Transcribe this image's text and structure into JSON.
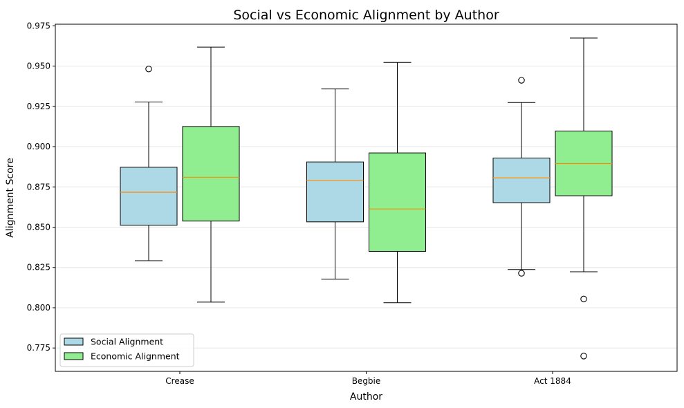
{
  "chart_data": {
    "type": "box",
    "title": "Social vs Economic Alignment by Author",
    "xlabel": "Author",
    "ylabel": "Alignment Score",
    "categories": [
      "Crease",
      "Begbie",
      "Act 1884"
    ],
    "ylim": [
      0.7605,
      0.976
    ],
    "yticks": [
      0.775,
      0.8,
      0.825,
      0.85,
      0.875,
      0.9,
      0.925,
      0.95,
      0.975
    ],
    "ytick_labels": [
      "0.775",
      "0.800",
      "0.825",
      "0.850",
      "0.875",
      "0.900",
      "0.925",
      "0.950",
      "0.975"
    ],
    "grid": "y",
    "legend_position": "lower-left",
    "median_color": "#ff8c00",
    "series": [
      {
        "name": "Social Alignment",
        "color": "#add8e6",
        "boxes": [
          {
            "category": "Crease",
            "whisker_low": 0.8292,
            "q1": 0.8512,
            "median": 0.8717,
            "q3": 0.8872,
            "whisker_high": 0.9277,
            "outliers": [
              0.9482
            ]
          },
          {
            "category": "Begbie",
            "whisker_low": 0.8177,
            "q1": 0.8533,
            "median": 0.879,
            "q3": 0.8905,
            "whisker_high": 0.9358,
            "outliers": []
          },
          {
            "category": "Act 1884",
            "whisker_low": 0.8237,
            "q1": 0.8652,
            "median": 0.8806,
            "q3": 0.8929,
            "whisker_high": 0.9274,
            "outliers": [
              0.8214,
              0.9412
            ]
          }
        ]
      },
      {
        "name": "Economic Alignment",
        "color": "#90ee90",
        "boxes": [
          {
            "category": "Crease",
            "whisker_low": 0.8035,
            "q1": 0.8538,
            "median": 0.881,
            "q3": 0.9125,
            "whisker_high": 0.9618,
            "outliers": []
          },
          {
            "category": "Begbie",
            "whisker_low": 0.8031,
            "q1": 0.835,
            "median": 0.8613,
            "q3": 0.8961,
            "whisker_high": 0.9523,
            "outliers": []
          },
          {
            "category": "Act 1884",
            "whisker_low": 0.8223,
            "q1": 0.8695,
            "median": 0.8895,
            "q3": 0.9097,
            "whisker_high": 0.9674,
            "outliers": [
              0.8054,
              0.77
            ]
          }
        ]
      }
    ]
  }
}
